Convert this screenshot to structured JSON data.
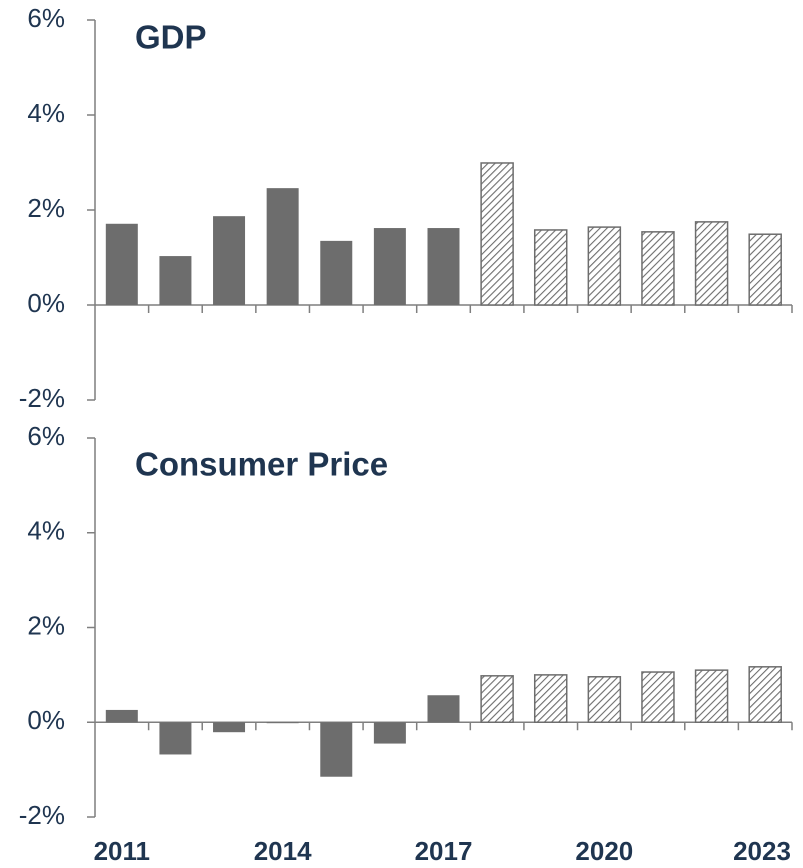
{
  "chart_data": [
    {
      "type": "bar",
      "title": "GDP",
      "color": "#6d6d6d",
      "hatch_from_index": 7,
      "values": [
        1.71,
        1.03,
        1.87,
        2.46,
        1.35,
        1.62,
        1.62,
        2.99,
        1.58,
        1.64,
        1.54,
        1.75,
        1.49
      ],
      "ylim": [
        -2,
        6
      ],
      "yticks": [
        {
          "value": -2,
          "label": "-2%"
        },
        {
          "value": 0,
          "label": "0%"
        },
        {
          "value": 2,
          "label": "2%"
        },
        {
          "value": 4,
          "label": "4%"
        },
        {
          "value": 6,
          "label": "6%"
        }
      ]
    },
    {
      "type": "bar",
      "title": "Consumer Price",
      "color": "#6d6d6d",
      "hatch_from_index": 7,
      "categories": [
        "2011",
        null,
        null,
        "2014",
        null,
        null,
        "2017",
        null,
        null,
        "2020",
        null,
        null,
        "2023"
      ],
      "values": [
        0.26,
        -0.68,
        -0.21,
        -0.02,
        -1.15,
        -0.45,
        0.57,
        0.98,
        1.0,
        0.96,
        1.06,
        1.1,
        1.17
      ],
      "ylim": [
        -2,
        6
      ],
      "yticks": [
        {
          "value": -2,
          "label": "-2%"
        },
        {
          "value": 0,
          "label": "0%"
        },
        {
          "value": 2,
          "label": "2%"
        },
        {
          "value": 4,
          "label": "4%"
        },
        {
          "value": 6,
          "label": "6%"
        }
      ]
    }
  ]
}
